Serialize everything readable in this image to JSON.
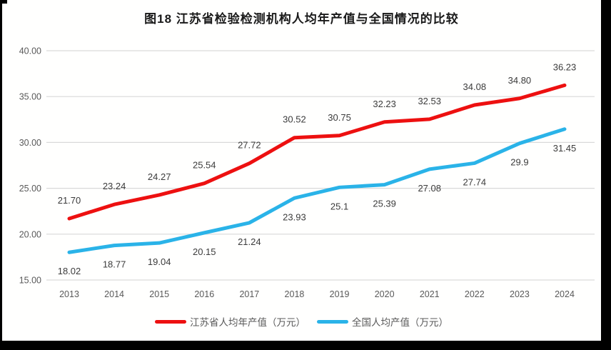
{
  "chart_data": {
    "type": "line",
    "title": "图18  江苏省检验检测机构人均年产值与全国情况的比较",
    "categories": [
      "2013",
      "2014",
      "2015",
      "2016",
      "2017",
      "2018",
      "2019",
      "2020",
      "2021",
      "2022",
      "2023",
      "2024"
    ],
    "series": [
      {
        "name": "江苏省人均年产值（万元）",
        "color": "#ed1010",
        "label_position": "above",
        "values": [
          "21.70",
          "23.24",
          "24.27",
          "25.54",
          "27.72",
          "30.52",
          "30.75",
          "32.23",
          "32.53",
          "34.08",
          "34.80",
          "36.23"
        ]
      },
      {
        "name": "全国人均产值（万元）",
        "color": "#2ab3e8",
        "label_position": "below",
        "values": [
          "18.02",
          "18.77",
          "19.04",
          "20.15",
          "21.24",
          "23.93",
          "25.1",
          "25.39",
          "27.08",
          "27.74",
          "29.9",
          "31.45"
        ]
      }
    ],
    "ylim": [
      15,
      40
    ],
    "yticks": [
      "15.00",
      "20.00",
      "25.00",
      "30.00",
      "35.00",
      "40.00"
    ],
    "grid": "horizontal",
    "legend_position": "bottom"
  },
  "colors": {
    "gridline": "#d9d9d9",
    "tick_label": "#595959",
    "data_label": "#3b3b3b",
    "page_edge": "#000000"
  }
}
